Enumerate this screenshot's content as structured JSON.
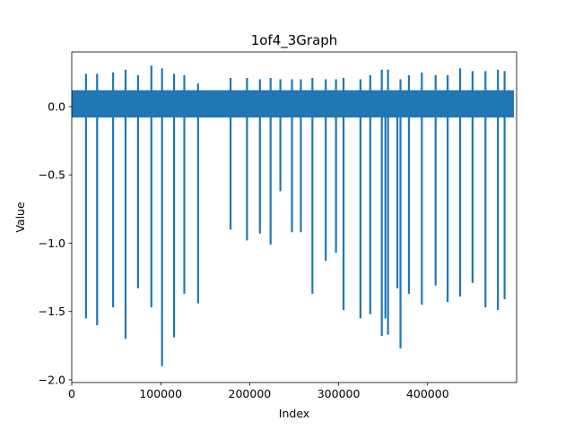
{
  "chart_data": {
    "type": "line",
    "title": "1of4_3Graph",
    "xlabel": "Index",
    "ylabel": "Value",
    "xlim": [
      0,
      500000
    ],
    "ylim": [
      -2.02,
      0.4
    ],
    "xticks": [
      0,
      100000,
      200000,
      300000,
      400000
    ],
    "xtick_labels": [
      "0",
      "100000",
      "200000",
      "300000",
      "400000"
    ],
    "yticks": [
      -2.0,
      -1.5,
      -1.0,
      -0.5,
      0.0
    ],
    "ytick_labels": [
      "−2.0",
      "−1.5",
      "−1.0",
      "−0.5",
      "0.0"
    ],
    "grid": false,
    "line_color": "#1f77b4",
    "series": [
      {
        "baseline": {
          "x_start": 0,
          "x_end": 497000,
          "y_upper": 0.12,
          "y_lower": -0.08
        },
        "spikes_down": [
          {
            "x": 16000,
            "y": -1.55
          },
          {
            "x": 28500,
            "y": -1.6
          },
          {
            "x": 46500,
            "y": -1.47
          },
          {
            "x": 60500,
            "y": -1.7
          },
          {
            "x": 74500,
            "y": -1.33
          },
          {
            "x": 89500,
            "y": -1.47
          },
          {
            "x": 101500,
            "y": -1.9
          },
          {
            "x": 115000,
            "y": -1.69
          },
          {
            "x": 126500,
            "y": -1.37
          },
          {
            "x": 142000,
            "y": -1.44
          },
          {
            "x": 178500,
            "y": -0.9
          },
          {
            "x": 197000,
            "y": -0.98
          },
          {
            "x": 211500,
            "y": -0.93
          },
          {
            "x": 223500,
            "y": -1.01
          },
          {
            "x": 234500,
            "y": -0.62
          },
          {
            "x": 247500,
            "y": -0.92
          },
          {
            "x": 257500,
            "y": -0.92
          },
          {
            "x": 270500,
            "y": -1.37
          },
          {
            "x": 285500,
            "y": -1.13
          },
          {
            "x": 297000,
            "y": -1.07
          },
          {
            "x": 305500,
            "y": -1.49
          },
          {
            "x": 324500,
            "y": -1.55
          },
          {
            "x": 335500,
            "y": -1.52
          },
          {
            "x": 348500,
            "y": -1.68
          },
          {
            "x": 352500,
            "y": -1.55
          },
          {
            "x": 355500,
            "y": -1.67
          },
          {
            "x": 366000,
            "y": -1.33
          },
          {
            "x": 369500,
            "y": -1.77
          },
          {
            "x": 379000,
            "y": -1.37
          },
          {
            "x": 393500,
            "y": -1.45
          },
          {
            "x": 409000,
            "y": -1.31
          },
          {
            "x": 422500,
            "y": -1.43
          },
          {
            "x": 436500,
            "y": -1.39
          },
          {
            "x": 450500,
            "y": -1.29
          },
          {
            "x": 465000,
            "y": -1.47
          },
          {
            "x": 479000,
            "y": -1.49
          },
          {
            "x": 486500,
            "y": -1.41
          }
        ],
        "spikes_up": [
          {
            "x": 16000,
            "y": 0.24
          },
          {
            "x": 28500,
            "y": 0.24
          },
          {
            "x": 46500,
            "y": 0.25
          },
          {
            "x": 60500,
            "y": 0.27
          },
          {
            "x": 74500,
            "y": 0.23
          },
          {
            "x": 89500,
            "y": 0.3
          },
          {
            "x": 101500,
            "y": 0.28
          },
          {
            "x": 115000,
            "y": 0.24
          },
          {
            "x": 126500,
            "y": 0.23
          },
          {
            "x": 142000,
            "y": 0.17
          },
          {
            "x": 178500,
            "y": 0.21
          },
          {
            "x": 197000,
            "y": 0.21
          },
          {
            "x": 211500,
            "y": 0.2
          },
          {
            "x": 223500,
            "y": 0.21
          },
          {
            "x": 234500,
            "y": 0.2
          },
          {
            "x": 247500,
            "y": 0.2
          },
          {
            "x": 257500,
            "y": 0.2
          },
          {
            "x": 270500,
            "y": 0.21
          },
          {
            "x": 285500,
            "y": 0.2
          },
          {
            "x": 297000,
            "y": 0.2
          },
          {
            "x": 305500,
            "y": 0.21
          },
          {
            "x": 324500,
            "y": 0.2
          },
          {
            "x": 335500,
            "y": 0.23
          },
          {
            "x": 348500,
            "y": 0.27
          },
          {
            "x": 355500,
            "y": 0.27
          },
          {
            "x": 369500,
            "y": 0.2
          },
          {
            "x": 379000,
            "y": 0.23
          },
          {
            "x": 393500,
            "y": 0.25
          },
          {
            "x": 409000,
            "y": 0.23
          },
          {
            "x": 422500,
            "y": 0.23
          },
          {
            "x": 436500,
            "y": 0.28
          },
          {
            "x": 450500,
            "y": 0.26
          },
          {
            "x": 465000,
            "y": 0.26
          },
          {
            "x": 479000,
            "y": 0.27
          },
          {
            "x": 486500,
            "y": 0.26
          }
        ]
      }
    ]
  }
}
